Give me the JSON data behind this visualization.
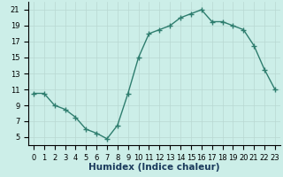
{
  "x": [
    0,
    1,
    2,
    3,
    4,
    5,
    6,
    7,
    8,
    9,
    10,
    11,
    12,
    13,
    14,
    15,
    16,
    17,
    18,
    19,
    20,
    21,
    22,
    23
  ],
  "y": [
    10.5,
    10.5,
    9.0,
    8.5,
    7.5,
    6.0,
    5.5,
    4.8,
    6.5,
    10.5,
    15.0,
    18.0,
    18.5,
    19.0,
    20.0,
    20.5,
    21.0,
    19.5,
    19.5,
    19.0,
    18.5,
    16.5,
    13.5,
    11.0
  ],
  "xlabel": "Humidex (Indice chaleur)",
  "xlim": [
    -0.5,
    23.5
  ],
  "ylim": [
    4,
    22
  ],
  "yticks": [
    5,
    7,
    9,
    11,
    13,
    15,
    17,
    19,
    21
  ],
  "xtick_labels": [
    "0",
    "1",
    "2",
    "3",
    "4",
    "5",
    "6",
    "7",
    "8",
    "9",
    "10",
    "11",
    "12",
    "13",
    "14",
    "15",
    "16",
    "17",
    "18",
    "19",
    "20",
    "21",
    "22",
    "23"
  ],
  "line_color": "#2e7d6e",
  "marker": "+",
  "bg_plot": "#cceee8",
  "bg_fig": "#cceee8",
  "grid_color": "#b8d8d2",
  "label_fontsize": 7.5,
  "tick_fontsize": 6.0,
  "xlabel_color": "#1a3a5c"
}
